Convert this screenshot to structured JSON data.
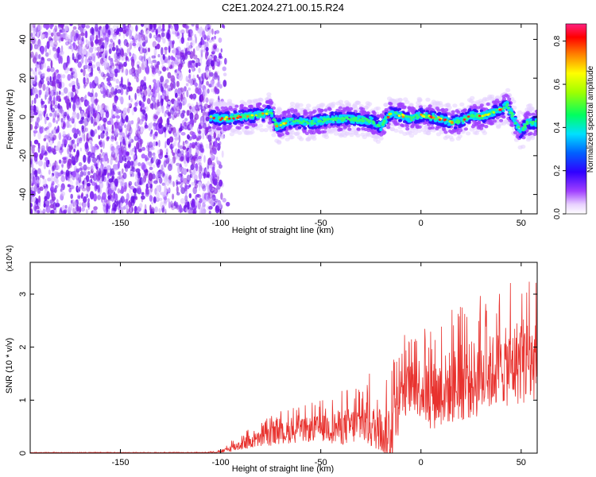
{
  "title": "C2E1.2024.271.00.15.R24",
  "colors": {
    "snr_line": "#e8322e",
    "frame": "#000000",
    "spectrum_purple": "#8a2be2",
    "spectrum_cyan": "#00e0ff",
    "spectrum_red": "#ff1a1a"
  },
  "chart_data": [
    {
      "type": "heatmap",
      "title": "C2E1.2024.271.00.15.R24",
      "xlabel": "Height of straight line (km)",
      "ylabel": "Frequency (Hz)",
      "xlim": [
        -195,
        58
      ],
      "ylim": [
        -50,
        48
      ],
      "x_ticks": [
        "-150",
        "-100",
        "-50",
        "0",
        "50"
      ],
      "x_tick_values": [
        -150,
        -100,
        -50,
        0,
        50
      ],
      "y_ticks": [
        "40",
        "20",
        "0",
        "-20",
        "-40"
      ],
      "y_tick_values": [
        40,
        20,
        0,
        -20,
        -40
      ],
      "colorbar": {
        "label": "Normalized spectral amplitude",
        "range": [
          0.0,
          0.88
        ],
        "ticks": [
          "0.0",
          "0.2",
          "0.4",
          "0.6",
          "0.8"
        ],
        "tick_values": [
          0.0,
          0.2,
          0.4,
          0.6,
          0.8
        ]
      },
      "ridge": {
        "x": [
          -105,
          -100,
          -90,
          -80,
          -75,
          -72,
          -65,
          -55,
          -45,
          -35,
          -25,
          -20,
          -15,
          -10,
          -5,
          0,
          5,
          10,
          15,
          20,
          25,
          30,
          35,
          40,
          43,
          46,
          50,
          53,
          58
        ],
        "freq": [
          0,
          -1,
          0,
          1,
          3,
          -5,
          -2,
          -3,
          -1,
          -1,
          -2,
          -5,
          2,
          1,
          -1,
          1,
          0,
          -1,
          -3,
          -2,
          1,
          0,
          2,
          4,
          6,
          0,
          -8,
          -3,
          -3
        ]
      },
      "noise_region_x": [
        -195,
        -100
      ],
      "peak_amplitude_x": [
        0,
        35
      ]
    },
    {
      "type": "line",
      "title": "",
      "xlabel": "Height of straight line (km)",
      "ylabel": "SNR (10 * v/v)",
      "y_multiplier": "(x10^4)",
      "xlim": [
        -195,
        58
      ],
      "ylim": [
        0,
        3.6
      ],
      "x_ticks": [
        "-150",
        "-100",
        "-50",
        "0",
        "50"
      ],
      "x_tick_values": [
        -150,
        -100,
        -50,
        0,
        50
      ],
      "y_ticks": [
        "0",
        "1",
        "2",
        "3"
      ],
      "y_tick_values": [
        0,
        1,
        2,
        3
      ],
      "series": [
        {
          "envelope": {
            "x": [
              -195,
              -110,
              -100,
              -90,
              -80,
              -70,
              -60,
              -50,
              -40,
              -30,
              -25,
              -20,
              -15,
              -10,
              -5,
              0,
              5,
              10,
              20,
              30,
              40,
              45,
              50,
              55,
              58
            ],
            "mean": [
              0.01,
              0.01,
              0.02,
              0.15,
              0.25,
              0.35,
              0.4,
              0.45,
              0.45,
              0.5,
              0.5,
              0.3,
              0.3,
              1.1,
              1.2,
              1.2,
              1.0,
              1.1,
              1.25,
              1.35,
              1.55,
              1.55,
              1.7,
              1.6,
              1.7
            ],
            "peak": [
              0.02,
              0.02,
              0.05,
              0.4,
              0.6,
              0.8,
              0.9,
              1.0,
              1.2,
              1.3,
              1.55,
              0.9,
              2.0,
              2.3,
              2.2,
              2.6,
              2.4,
              2.6,
              2.9,
              3.0,
              3.1,
              3.3,
              3.6,
              3.5,
              3.2
            ]
          }
        }
      ]
    }
  ]
}
